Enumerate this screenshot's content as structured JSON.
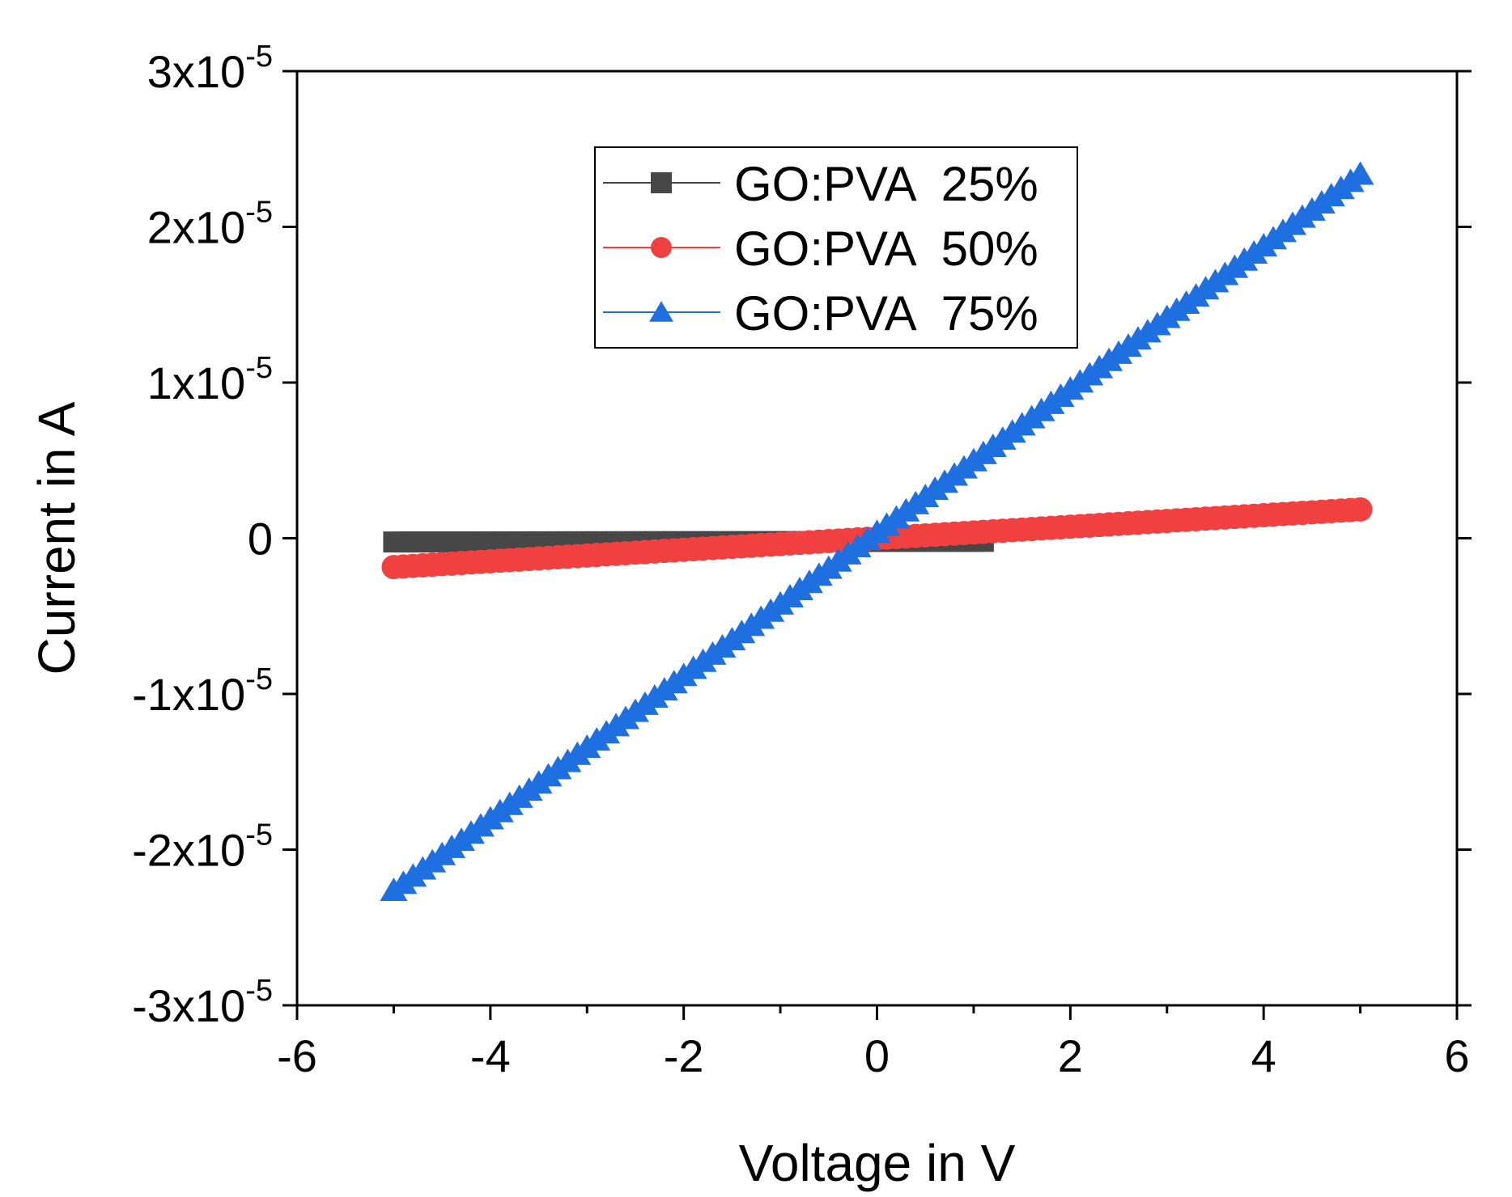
{
  "chart_data": {
    "type": "scatter",
    "title": "",
    "xlabel": "Voltage in V",
    "ylabel": "Current in A",
    "xlim": [
      -6,
      6
    ],
    "ylim": [
      -3e-05,
      3e-05
    ],
    "x_ticks": [
      {
        "value": -6,
        "label": "-6"
      },
      {
        "value": -4,
        "label": "-4"
      },
      {
        "value": -2,
        "label": "-2"
      },
      {
        "value": 0,
        "label": "0"
      },
      {
        "value": 2,
        "label": "2"
      },
      {
        "value": 4,
        "label": "4"
      },
      {
        "value": 6,
        "label": "6"
      }
    ],
    "y_ticks": [
      {
        "value": 3e-05,
        "label": "3x10",
        "exp": "-5"
      },
      {
        "value": 2e-05,
        "label": "2x10",
        "exp": "-5"
      },
      {
        "value": 1e-05,
        "label": "1x10",
        "exp": "-5"
      },
      {
        "value": 0,
        "label": "0",
        "exp": ""
      },
      {
        "value": -1e-05,
        "label": "-1x10",
        "exp": "-5"
      },
      {
        "value": -2e-05,
        "label": "-2x10",
        "exp": "-5"
      },
      {
        "value": -3e-05,
        "label": "-3x10",
        "exp": "-5"
      }
    ],
    "legend_position": "top-center",
    "series": [
      {
        "name": "GO:PVA  25%",
        "marker": "square",
        "color": "#474747",
        "x_start": -5,
        "x_end": 1.1,
        "x_step": 0.1,
        "y_start": -2.4e-07,
        "y_end": -2e-07,
        "note": "dense markers forming a thick near-flat band from -5 V to ~1.1 V"
      },
      {
        "name": "GO:PVA  50%",
        "marker": "circle",
        "color": "#f04040",
        "x_start": -5,
        "x_end": 5,
        "x_step": 0.1,
        "y_start": -1.85e-06,
        "y_end": 1.85e-06
      },
      {
        "name": "GO:PVA  75%",
        "marker": "triangle",
        "color": "#1e6fe0",
        "x_start": -5,
        "x_end": 5,
        "x_step": 0.1,
        "y_start": -2.26e-05,
        "y_end": 2.34e-05
      }
    ]
  }
}
